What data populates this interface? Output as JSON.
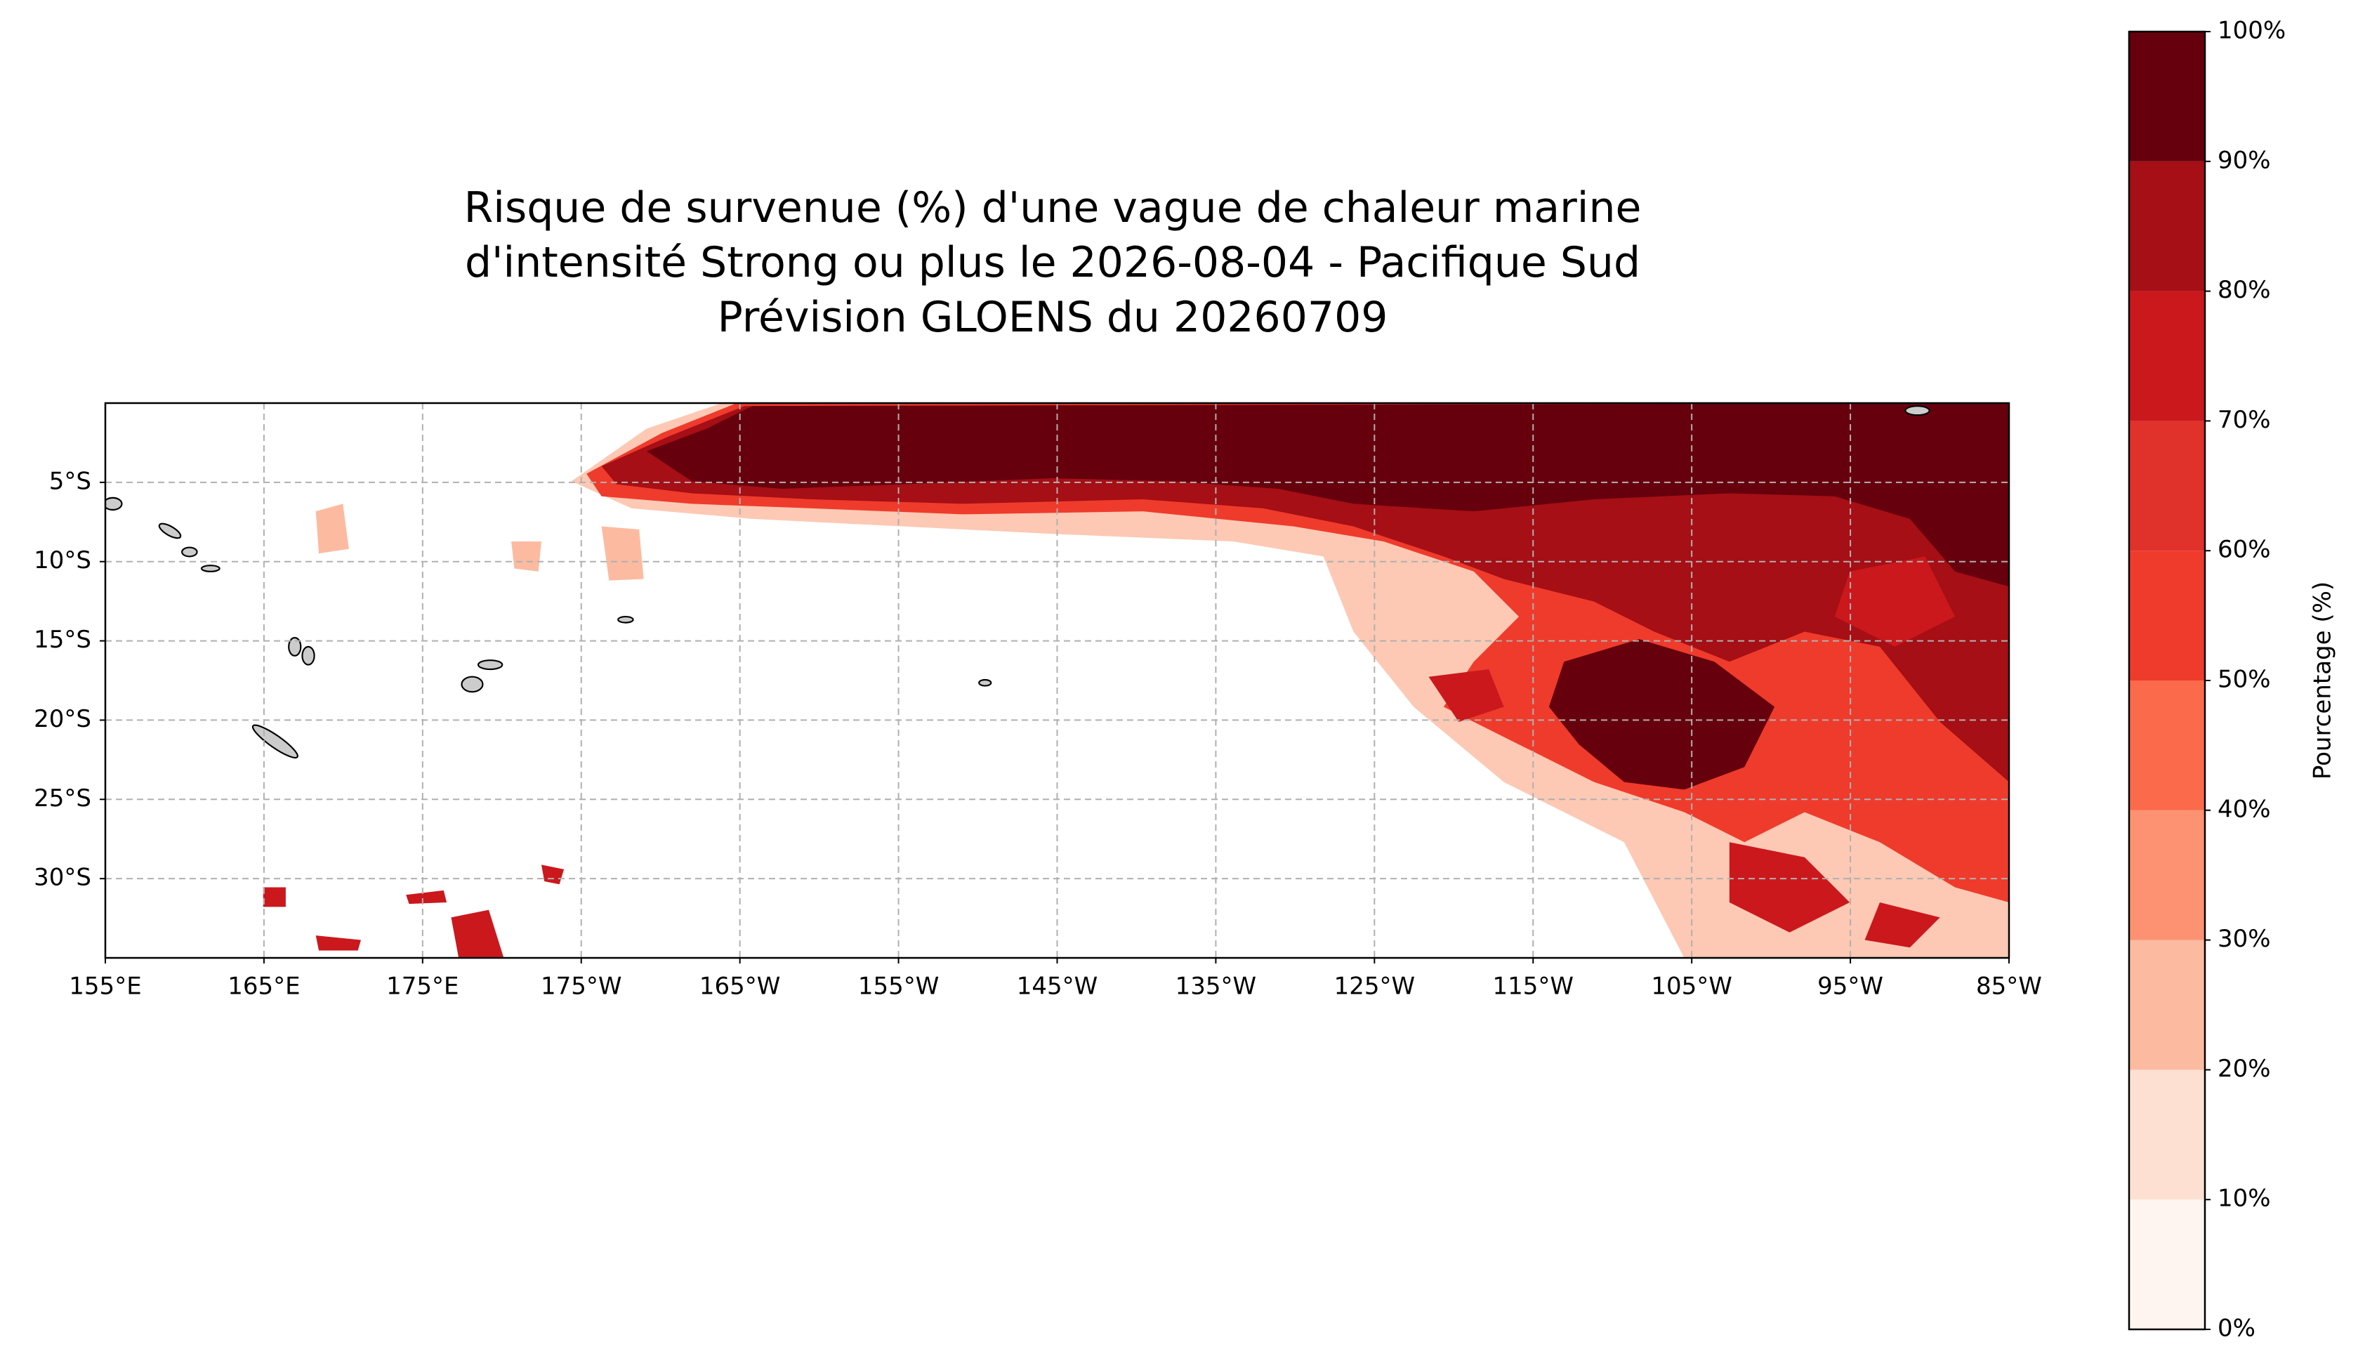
{
  "title_lines": [
    "Risque de survenue (%) d'une vague de chaleur marine",
    "d'intensité Strong ou plus le 2026-08-04 - Pacifique Sud",
    "Prévision GLOENS du 20260709"
  ],
  "map": {
    "xlim": [
      155,
      275
    ],
    "ylim": [
      0,
      -35
    ],
    "xticks": [
      {
        "value": 155,
        "label": "155°E"
      },
      {
        "value": 165,
        "label": "165°E"
      },
      {
        "value": 175,
        "label": "175°E"
      },
      {
        "value": 185,
        "label": "175°W"
      },
      {
        "value": 195,
        "label": "165°W"
      },
      {
        "value": 205,
        "label": "155°W"
      },
      {
        "value": 215,
        "label": "145°W"
      },
      {
        "value": 225,
        "label": "135°W"
      },
      {
        "value": 235,
        "label": "125°W"
      },
      {
        "value": 245,
        "label": "115°W"
      },
      {
        "value": 255,
        "label": "105°W"
      },
      {
        "value": 265,
        "label": "95°W"
      },
      {
        "value": 275,
        "label": "85°W"
      }
    ],
    "yticks": [
      {
        "value": -5,
        "label": "5°S"
      },
      {
        "value": -10,
        "label": "10°S"
      },
      {
        "value": -15,
        "label": "15°S"
      },
      {
        "value": -20,
        "label": "20°S"
      },
      {
        "value": -25,
        "label": "25°S"
      },
      {
        "value": -30,
        "label": "30°S"
      }
    ],
    "grid": true
  },
  "colorbar": {
    "label": "Pourcentage (%)",
    "lim": [
      0,
      100
    ],
    "ticks": [
      {
        "value": 0,
        "label": "0%"
      },
      {
        "value": 10,
        "label": "10%"
      },
      {
        "value": 20,
        "label": "20%"
      },
      {
        "value": 30,
        "label": "30%"
      },
      {
        "value": 40,
        "label": "40%"
      },
      {
        "value": 50,
        "label": "50%"
      },
      {
        "value": 60,
        "label": "60%"
      },
      {
        "value": 70,
        "label": "70%"
      },
      {
        "value": 80,
        "label": "80%"
      },
      {
        "value": 90,
        "label": "90%"
      },
      {
        "value": 100,
        "label": "100%"
      }
    ],
    "colors": [
      "#fff5f0",
      "#fee0d2",
      "#fcbba1",
      "#fc9272",
      "#fb6a4a",
      "#ef3b2c",
      "#e0312a",
      "#cb181d",
      "#a50f15",
      "#67000d"
    ]
  }
}
